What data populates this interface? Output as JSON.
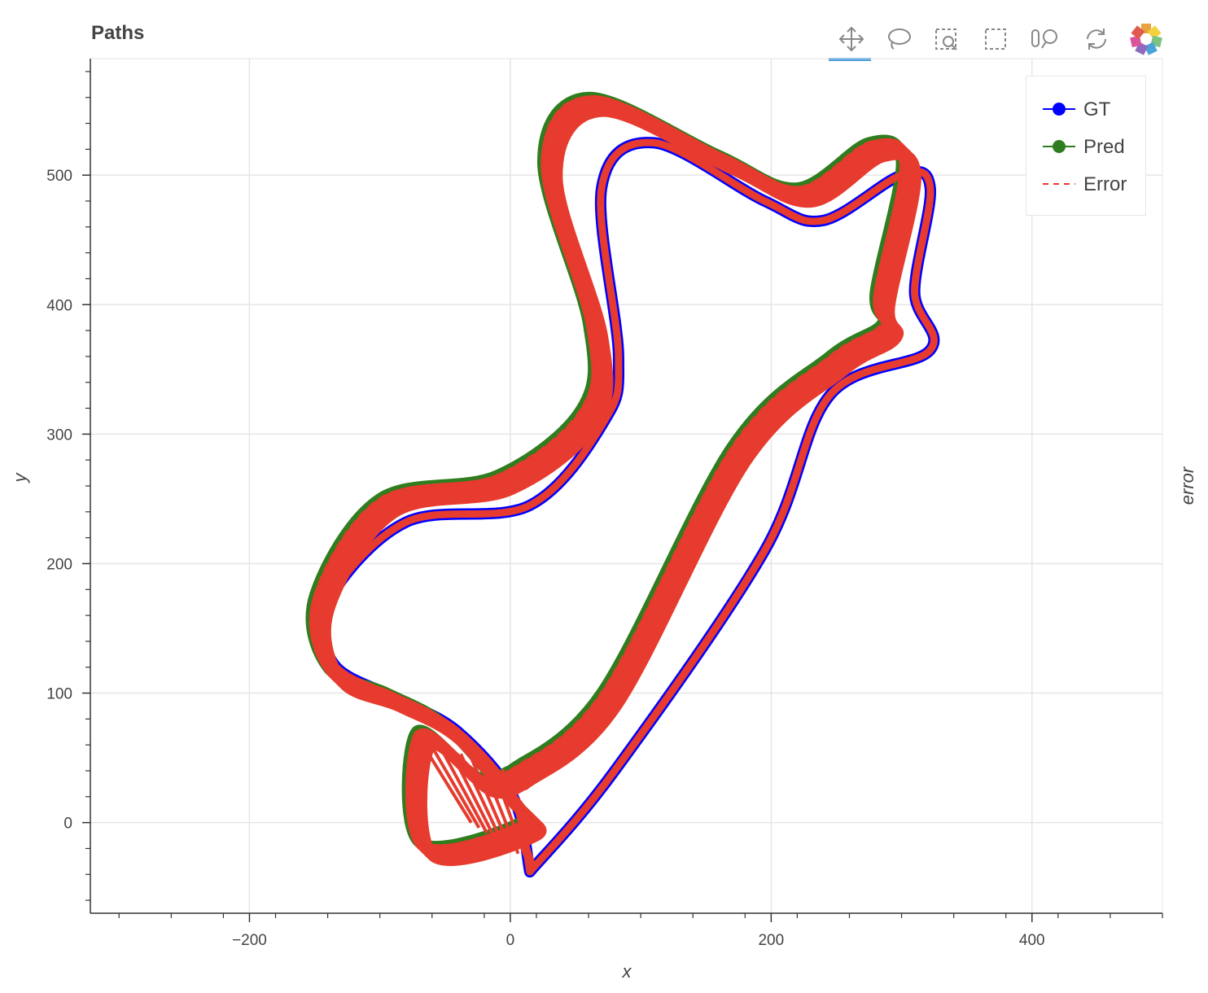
{
  "title": "Paths",
  "toolbar": {
    "tools": [
      {
        "name": "pan-tool",
        "icon": "pan-icon",
        "active": true
      },
      {
        "name": "lasso-select-tool",
        "icon": "lasso-icon",
        "active": false
      },
      {
        "name": "box-zoom-tool",
        "icon": "box-zoom-icon",
        "active": false
      },
      {
        "name": "box-select-tool",
        "icon": "box-select-icon",
        "active": false
      },
      {
        "name": "wheel-zoom-tool",
        "icon": "wheel-zoom-icon",
        "active": false
      },
      {
        "name": "reset-tool",
        "icon": "reset-icon",
        "active": false
      },
      {
        "name": "bokeh-logo",
        "icon": "bokeh-logo-icon",
        "active": false
      }
    ]
  },
  "colors": {
    "gt": "#0000ff",
    "pred": "#2f7d1e",
    "error": "#e63b2e",
    "grid": "#e5e5e5",
    "active_tool": "#4a9fe0"
  },
  "chart_data": {
    "type": "line",
    "xlabel": "x",
    "ylabel": "y",
    "right_label": "error",
    "xlim": [
      -322,
      500
    ],
    "ylim": [
      -70,
      590
    ],
    "x_ticks": [
      "−200",
      "0",
      "200",
      "400"
    ],
    "x_tick_values": [
      -200,
      0,
      200,
      400
    ],
    "y_ticks": [
      "0",
      "100",
      "200",
      "300",
      "400",
      "500"
    ],
    "y_tick_values": [
      0,
      100,
      200,
      300,
      400,
      500
    ],
    "grid": true,
    "legend_position": "top-right",
    "legend": [
      {
        "label": "GT",
        "style": "line-circle",
        "color": "#0000ff"
      },
      {
        "label": "Pred",
        "style": "line-circle",
        "color": "#2f7d1e"
      },
      {
        "label": "Error",
        "style": "dashed",
        "color": "#e63b2e"
      }
    ],
    "series": [
      {
        "name": "GT",
        "x": [
          15,
          80,
          195,
          245,
          322,
          310,
          322,
          300,
          240,
          195,
          110,
          70,
          83,
          72,
          15,
          -80,
          -140,
          -135,
          -85,
          -40,
          2,
          15
        ],
        "y": [
          -38,
          40,
          210,
          330,
          365,
          410,
          490,
          500,
          465,
          480,
          525,
          490,
          360,
          310,
          245,
          232,
          170,
          122,
          95,
          70,
          20,
          -38
        ]
      },
      {
        "name": "Pred",
        "x": [
          0,
          70,
          170,
          245,
          285,
          280,
          300,
          275,
          220,
          160,
          60,
          25,
          60,
          55,
          -10,
          -100,
          -150,
          -140,
          -95,
          -50,
          -2,
          8,
          -70,
          -72,
          -25,
          0
        ],
        "y": [
          40,
          100,
          290,
          360,
          385,
          410,
          510,
          525,
          490,
          515,
          560,
          510,
          385,
          320,
          268,
          250,
          175,
          120,
          100,
          75,
          20,
          0,
          -15,
          70,
          35,
          40
        ]
      }
    ]
  }
}
